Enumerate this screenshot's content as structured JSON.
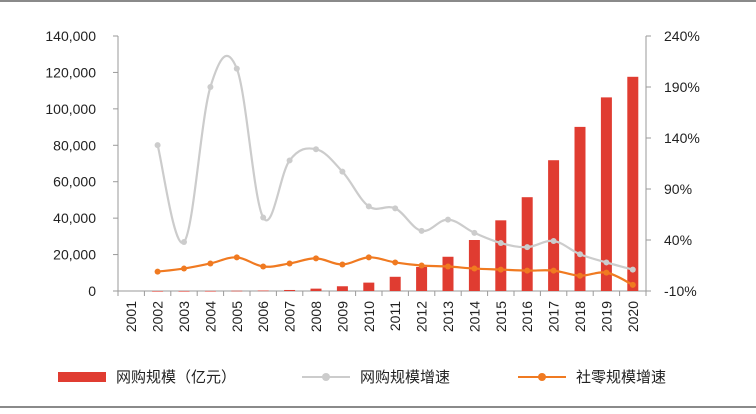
{
  "chart_data": {
    "type": "bar",
    "categories": [
      "2001",
      "2002",
      "2003",
      "2004",
      "2005",
      "2006",
      "2007",
      "2008",
      "2009",
      "2010",
      "2011",
      "2012",
      "2013",
      "2014",
      "2015",
      "2016",
      "2017",
      "2018",
      "2019",
      "2020"
    ],
    "series": [
      {
        "name": "网购规模（亿元）",
        "type": "bar",
        "axis": "left",
        "color": "#e03c31",
        "values": [
          null,
          10,
          20,
          40,
          140,
          260,
          560,
          1300,
          2600,
          4600,
          7800,
          13200,
          18800,
          28000,
          38800,
          51500,
          71800,
          90100,
          106300,
          117600
        ]
      },
      {
        "name": "网购规模增速",
        "type": "line",
        "axis": "right",
        "color": "#cccccc",
        "values": [
          null,
          133,
          38,
          190,
          208,
          62,
          118,
          129,
          107,
          73,
          71,
          49,
          60,
          47,
          37,
          33,
          39,
          26,
          18,
          11
        ]
      },
      {
        "name": "社零规模增速",
        "type": "line",
        "axis": "right",
        "color": "#f07a21",
        "values": [
          null,
          9,
          12,
          17,
          23,
          14,
          17,
          22,
          16,
          23,
          18,
          15,
          14,
          12,
          11,
          10,
          10,
          5,
          8,
          -4
        ]
      }
    ],
    "y_left": {
      "min": 0,
      "max": 140000,
      "ticks": [
        "140,000",
        "120,000",
        "100,000",
        "80,000",
        "60,000",
        "40,000",
        "20,000",
        "0"
      ]
    },
    "y_right": {
      "min": -10,
      "max": 240,
      "ticks": [
        "240%",
        "190%",
        "140%",
        "90%",
        "40%",
        "-10%"
      ]
    },
    "legend_position": "bottom"
  },
  "legend": {
    "bar_label": "网购规模（亿元）",
    "gray_label": "网购规模增速",
    "orange_label": "社零规模增速"
  }
}
